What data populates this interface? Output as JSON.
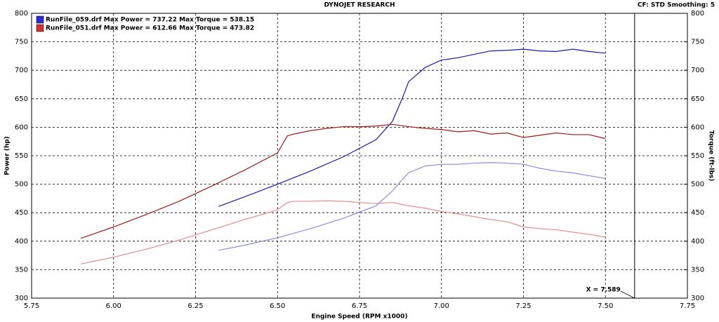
{
  "chart_data": {
    "type": "line",
    "title": "DYNOJET RESEARCH",
    "subtitle": "CF: STD  Smoothing: 5",
    "x_label": "Engine Speed (RPM x1000)",
    "y_label": "Power (hp)",
    "y2_label": "Torque (ft-lbs)",
    "xlim": [
      5.75,
      7.75
    ],
    "xticks": [
      5.75,
      {
        "value": 6,
        "label": "6.00"
      },
      6.25,
      {
        "value": 6.5,
        "label": "6.50"
      },
      6.75,
      {
        "value": 7,
        "label": "7.00"
      },
      7.25,
      {
        "value": 7.5,
        "label": "7.50"
      },
      7.75
    ],
    "ylim": [
      300,
      800
    ],
    "yticks": [
      300,
      350,
      400,
      450,
      500,
      550,
      600,
      650,
      700,
      750,
      800
    ],
    "y2lim": [
      300,
      800
    ],
    "y2ticks": [
      300,
      350,
      400,
      450,
      500,
      550,
      600,
      650,
      700,
      750,
      800
    ],
    "grid": true,
    "legend": [
      {
        "label": "RunFile_059.drf Max Power = 737.22 Max Torque = 538.15",
        "color": "#2a2ad0"
      },
      {
        "label": "RunFile_051.drf Max Power = 612.66 Max Torque = 473.82",
        "color": "#d03030"
      }
    ],
    "cursor": {
      "value": 7.589,
      "label": "X = 7.589"
    },
    "series": [
      {
        "color": "#1a1aa0",
        "axis": "y",
        "x": [
          6.32,
          6.4,
          6.5,
          6.6,
          6.7,
          6.8,
          6.85,
          6.88,
          6.9,
          6.95,
          7.0,
          7.05,
          7.1,
          7.15,
          7.2,
          7.25,
          7.3,
          7.35,
          7.4,
          7.45,
          7.5
        ],
        "values": [
          461,
          478,
          500,
          523,
          548,
          578,
          610,
          650,
          680,
          705,
          718,
          722,
          728,
          734,
          735,
          737,
          734,
          733,
          737,
          733,
          730
        ]
      },
      {
        "color": "#8a8ae6",
        "axis": "y2",
        "x": [
          6.32,
          6.4,
          6.5,
          6.6,
          6.7,
          6.8,
          6.85,
          6.88,
          6.9,
          6.95,
          7.0,
          7.05,
          7.1,
          7.15,
          7.2,
          7.25,
          7.3,
          7.35,
          7.4,
          7.45,
          7.5
        ],
        "values": [
          384,
          393,
          406,
          422,
          440,
          462,
          488,
          508,
          520,
          532,
          535,
          535,
          537,
          538,
          537,
          535,
          528,
          523,
          520,
          515,
          510
        ]
      },
      {
        "color": "#a01a1a",
        "axis": "y",
        "x": [
          5.9,
          6.0,
          6.1,
          6.2,
          6.3,
          6.4,
          6.5,
          6.53,
          6.55,
          6.6,
          6.65,
          6.7,
          6.75,
          6.8,
          6.85,
          6.9,
          6.95,
          7.0,
          7.05,
          7.1,
          7.15,
          7.2,
          7.25,
          7.3,
          7.35,
          7.4,
          7.45,
          7.5
        ],
        "values": [
          405,
          425,
          447,
          470,
          497,
          525,
          555,
          585,
          588,
          594,
          598,
          601,
          601,
          602,
          605,
          601,
          598,
          596,
          592,
          594,
          588,
          590,
          582,
          586,
          590,
          587,
          587,
          580
        ]
      },
      {
        "color": "#e68a8a",
        "axis": "y2",
        "x": [
          5.9,
          6.0,
          6.1,
          6.2,
          6.3,
          6.4,
          6.5,
          6.53,
          6.55,
          6.6,
          6.65,
          6.7,
          6.75,
          6.8,
          6.85,
          6.9,
          6.95,
          7.0,
          7.05,
          7.1,
          7.15,
          7.2,
          7.25,
          7.3,
          7.35,
          7.4,
          7.45,
          7.5
        ],
        "values": [
          360,
          372,
          386,
          402,
          420,
          438,
          455,
          468,
          470,
          470,
          471,
          470,
          468,
          466,
          468,
          462,
          458,
          452,
          448,
          443,
          438,
          434,
          425,
          422,
          420,
          416,
          412,
          407
        ]
      }
    ]
  }
}
